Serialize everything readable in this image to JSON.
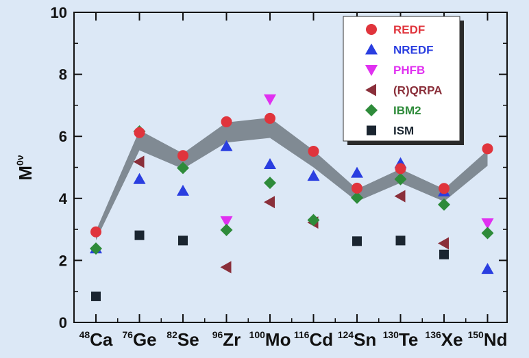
{
  "chart_data": {
    "type": "scatter",
    "ylabel": "M",
    "ylabel_superscript": "0ν",
    "ylim": [
      0,
      10
    ],
    "yticks": [
      0,
      2,
      4,
      6,
      8,
      10
    ],
    "grid": false,
    "legend_position": "top-right",
    "categories": [
      {
        "mass": "48",
        "symbol": "Ca"
      },
      {
        "mass": "76",
        "symbol": "Ge"
      },
      {
        "mass": "82",
        "symbol": "Se"
      },
      {
        "mass": "96",
        "symbol": "Zr"
      },
      {
        "mass": "100",
        "symbol": "Mo"
      },
      {
        "mass": "116",
        "symbol": "Cd"
      },
      {
        "mass": "124",
        "symbol": "Sn"
      },
      {
        "mass": "130",
        "symbol": "Te"
      },
      {
        "mass": "136",
        "symbol": "Xe"
      },
      {
        "mass": "150",
        "symbol": "Nd"
      }
    ],
    "band": {
      "upper": [
        2.95,
        6.2,
        5.45,
        6.45,
        6.6,
        5.55,
        4.3,
        4.95,
        4.3,
        5.55
      ],
      "lower": [
        2.65,
        5.55,
        4.95,
        5.8,
        5.95,
        5.0,
        3.9,
        4.5,
        3.9,
        5.05
      ],
      "color": "#808a93"
    },
    "series": [
      {
        "name": "REDF",
        "marker": "circle",
        "color": "#e0343c",
        "values": [
          2.92,
          6.12,
          5.38,
          6.47,
          6.58,
          5.52,
          4.33,
          4.96,
          4.32,
          5.6
        ]
      },
      {
        "name": "NREDF",
        "marker": "triangle-up",
        "color": "#2a3ee0",
        "values": [
          2.38,
          4.62,
          4.24,
          5.68,
          5.1,
          4.72,
          4.82,
          5.13,
          4.22,
          1.72
        ]
      },
      {
        "name": "PHFB",
        "marker": "triangle-down",
        "color": "#e030f0",
        "values": [
          null,
          null,
          null,
          3.27,
          7.2,
          null,
          null,
          null,
          null,
          3.2
        ]
      },
      {
        "name": "(R)QRPA",
        "marker": "triangle-left",
        "color": "#8a2f3a",
        "values": [
          null,
          5.18,
          null,
          1.78,
          3.88,
          3.22,
          null,
          4.07,
          2.55,
          null
        ]
      },
      {
        "name": "IBM2",
        "marker": "diamond",
        "color": "#2e8b3a",
        "values": [
          2.38,
          6.16,
          4.98,
          2.98,
          4.5,
          3.3,
          4.02,
          4.62,
          3.8,
          2.88
        ]
      },
      {
        "name": "ISM",
        "marker": "square",
        "color": "#1a2530",
        "values": [
          0.84,
          2.81,
          2.64,
          null,
          null,
          null,
          2.62,
          2.64,
          2.19,
          null
        ]
      }
    ]
  }
}
